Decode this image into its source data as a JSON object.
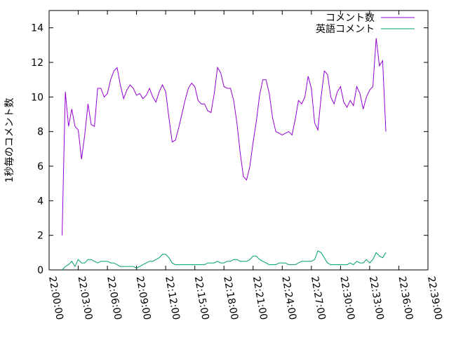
{
  "chart_data": {
    "type": "line",
    "title": "",
    "xlabel": "",
    "ylabel": "1秒毎のコメント数",
    "xlim": [
      "22:00:00",
      "22:39:00"
    ],
    "ylim": [
      0,
      15
    ],
    "x_ticks": [
      "22:00:00",
      "22:03:00",
      "22:06:00",
      "22:09:00",
      "22:12:00",
      "22:15:00",
      "22:18:00",
      "22:21:00",
      "22:24:00",
      "22:27:00",
      "22:30:00",
      "22:33:00",
      "22:36:00",
      "22:39:00"
    ],
    "y_ticks": [
      0,
      2,
      4,
      6,
      8,
      10,
      12,
      14
    ],
    "grid": false,
    "legend_position": "top-right",
    "series": [
      {
        "name": "コメント数",
        "color": "#9400d3",
        "points": [
          [
            "22:01:20",
            2.0
          ],
          [
            "22:01:40",
            10.3
          ],
          [
            "22:02:00",
            8.3
          ],
          [
            "22:02:20",
            9.3
          ],
          [
            "22:02:40",
            8.3
          ],
          [
            "22:03:00",
            8.1
          ],
          [
            "22:03:20",
            6.4
          ],
          [
            "22:03:40",
            7.8
          ],
          [
            "22:04:00",
            9.6
          ],
          [
            "22:04:20",
            8.4
          ],
          [
            "22:04:40",
            8.3
          ],
          [
            "22:05:00",
            10.5
          ],
          [
            "22:05:20",
            10.5
          ],
          [
            "22:05:40",
            10.0
          ],
          [
            "22:06:00",
            10.2
          ],
          [
            "22:06:20",
            11.0
          ],
          [
            "22:06:40",
            11.5
          ],
          [
            "22:07:00",
            11.7
          ],
          [
            "22:07:20",
            10.7
          ],
          [
            "22:07:40",
            9.9
          ],
          [
            "22:08:00",
            10.4
          ],
          [
            "22:08:20",
            10.7
          ],
          [
            "22:08:40",
            10.5
          ],
          [
            "22:09:00",
            10.1
          ],
          [
            "22:09:20",
            10.2
          ],
          [
            "22:09:40",
            9.9
          ],
          [
            "22:10:00",
            10.1
          ],
          [
            "22:10:20",
            10.5
          ],
          [
            "22:10:40",
            10.0
          ],
          [
            "22:11:00",
            9.7
          ],
          [
            "22:11:20",
            10.3
          ],
          [
            "22:11:40",
            10.7
          ],
          [
            "22:12:00",
            10.3
          ],
          [
            "22:12:20",
            8.8
          ],
          [
            "22:12:40",
            7.4
          ],
          [
            "22:13:00",
            7.5
          ],
          [
            "22:13:20",
            8.2
          ],
          [
            "22:13:40",
            9.0
          ],
          [
            "22:14:00",
            9.8
          ],
          [
            "22:14:20",
            10.5
          ],
          [
            "22:14:40",
            10.8
          ],
          [
            "22:15:00",
            10.6
          ],
          [
            "22:15:20",
            9.8
          ],
          [
            "22:15:40",
            9.6
          ],
          [
            "22:16:00",
            9.6
          ],
          [
            "22:16:20",
            9.2
          ],
          [
            "22:16:40",
            9.1
          ],
          [
            "22:17:00",
            10.2
          ],
          [
            "22:17:20",
            11.7
          ],
          [
            "22:17:40",
            11.4
          ],
          [
            "22:18:00",
            10.6
          ],
          [
            "22:18:20",
            10.5
          ],
          [
            "22:18:40",
            10.5
          ],
          [
            "22:19:00",
            9.8
          ],
          [
            "22:19:20",
            8.5
          ],
          [
            "22:19:40",
            6.8
          ],
          [
            "22:20:00",
            5.4
          ],
          [
            "22:20:20",
            5.2
          ],
          [
            "22:20:40",
            6.0
          ],
          [
            "22:21:00",
            7.4
          ],
          [
            "22:21:20",
            8.6
          ],
          [
            "22:21:40",
            10.1
          ],
          [
            "22:22:00",
            11.0
          ],
          [
            "22:22:20",
            11.0
          ],
          [
            "22:22:40",
            10.2
          ],
          [
            "22:23:00",
            8.8
          ],
          [
            "22:23:20",
            8.0
          ],
          [
            "22:23:40",
            7.9
          ],
          [
            "22:24:00",
            7.8
          ],
          [
            "22:24:20",
            7.9
          ],
          [
            "22:24:40",
            8.0
          ],
          [
            "22:25:00",
            7.8
          ],
          [
            "22:25:20",
            8.7
          ],
          [
            "22:25:40",
            9.8
          ],
          [
            "22:26:00",
            9.6
          ],
          [
            "22:26:20",
            10.0
          ],
          [
            "22:26:40",
            11.2
          ],
          [
            "22:27:00",
            10.5
          ],
          [
            "22:27:20",
            8.5
          ],
          [
            "22:27:40",
            8.1
          ],
          [
            "22:28:00",
            10.0
          ],
          [
            "22:28:20",
            11.5
          ],
          [
            "22:28:40",
            11.3
          ],
          [
            "22:29:00",
            10.0
          ],
          [
            "22:29:20",
            9.6
          ],
          [
            "22:29:40",
            10.3
          ],
          [
            "22:30:00",
            10.6
          ],
          [
            "22:30:20",
            9.7
          ],
          [
            "22:30:40",
            9.4
          ],
          [
            "22:31:00",
            9.8
          ],
          [
            "22:31:20",
            9.5
          ],
          [
            "22:31:40",
            10.6
          ],
          [
            "22:32:00",
            10.2
          ],
          [
            "22:32:20",
            9.3
          ],
          [
            "22:32:40",
            10.0
          ],
          [
            "22:33:00",
            10.4
          ],
          [
            "22:33:20",
            10.6
          ],
          [
            "22:33:40",
            13.4
          ],
          [
            "22:34:00",
            11.8
          ],
          [
            "22:34:20",
            12.1
          ],
          [
            "22:34:40",
            8.0
          ]
        ]
      },
      {
        "name": "英語コメント",
        "color": "#009e73",
        "points": [
          [
            "22:01:20",
            0.0
          ],
          [
            "22:01:40",
            0.2
          ],
          [
            "22:02:00",
            0.3
          ],
          [
            "22:02:20",
            0.5
          ],
          [
            "22:02:40",
            0.2
          ],
          [
            "22:03:00",
            0.6
          ],
          [
            "22:03:20",
            0.4
          ],
          [
            "22:03:40",
            0.4
          ],
          [
            "22:04:00",
            0.6
          ],
          [
            "22:04:20",
            0.6
          ],
          [
            "22:04:40",
            0.5
          ],
          [
            "22:05:00",
            0.4
          ],
          [
            "22:05:20",
            0.5
          ],
          [
            "22:05:40",
            0.5
          ],
          [
            "22:06:00",
            0.5
          ],
          [
            "22:06:20",
            0.4
          ],
          [
            "22:06:40",
            0.4
          ],
          [
            "22:07:00",
            0.3
          ],
          [
            "22:07:20",
            0.2
          ],
          [
            "22:07:40",
            0.2
          ],
          [
            "22:08:00",
            0.2
          ],
          [
            "22:08:20",
            0.2
          ],
          [
            "22:08:40",
            0.2
          ],
          [
            "22:09:00",
            0.1
          ],
          [
            "22:09:20",
            0.2
          ],
          [
            "22:09:40",
            0.3
          ],
          [
            "22:10:00",
            0.4
          ],
          [
            "22:10:20",
            0.5
          ],
          [
            "22:10:40",
            0.5
          ],
          [
            "22:11:00",
            0.6
          ],
          [
            "22:11:20",
            0.7
          ],
          [
            "22:11:40",
            0.9
          ],
          [
            "22:12:00",
            0.9
          ],
          [
            "22:12:20",
            0.7
          ],
          [
            "22:12:40",
            0.4
          ],
          [
            "22:13:00",
            0.3
          ],
          [
            "22:13:20",
            0.3
          ],
          [
            "22:13:40",
            0.3
          ],
          [
            "22:14:00",
            0.3
          ],
          [
            "22:14:20",
            0.3
          ],
          [
            "22:14:40",
            0.3
          ],
          [
            "22:15:00",
            0.3
          ],
          [
            "22:15:20",
            0.3
          ],
          [
            "22:15:40",
            0.3
          ],
          [
            "22:16:00",
            0.3
          ],
          [
            "22:16:20",
            0.4
          ],
          [
            "22:16:40",
            0.4
          ],
          [
            "22:17:00",
            0.4
          ],
          [
            "22:17:20",
            0.5
          ],
          [
            "22:17:40",
            0.4
          ],
          [
            "22:18:00",
            0.4
          ],
          [
            "22:18:20",
            0.5
          ],
          [
            "22:18:40",
            0.5
          ],
          [
            "22:19:00",
            0.6
          ],
          [
            "22:19:20",
            0.6
          ],
          [
            "22:19:40",
            0.5
          ],
          [
            "22:20:00",
            0.5
          ],
          [
            "22:20:20",
            0.5
          ],
          [
            "22:20:40",
            0.6
          ],
          [
            "22:21:00",
            0.8
          ],
          [
            "22:21:20",
            0.8
          ],
          [
            "22:21:40",
            0.6
          ],
          [
            "22:22:00",
            0.5
          ],
          [
            "22:22:20",
            0.4
          ],
          [
            "22:22:40",
            0.3
          ],
          [
            "22:23:00",
            0.3
          ],
          [
            "22:23:20",
            0.3
          ],
          [
            "22:23:40",
            0.4
          ],
          [
            "22:24:00",
            0.4
          ],
          [
            "22:24:20",
            0.4
          ],
          [
            "22:24:40",
            0.3
          ],
          [
            "22:25:00",
            0.3
          ],
          [
            "22:25:20",
            0.3
          ],
          [
            "22:25:40",
            0.4
          ],
          [
            "22:26:00",
            0.5
          ],
          [
            "22:26:20",
            0.5
          ],
          [
            "22:26:40",
            0.5
          ],
          [
            "22:27:00",
            0.5
          ],
          [
            "22:27:20",
            0.6
          ],
          [
            "22:27:40",
            1.1
          ],
          [
            "22:28:00",
            1.0
          ],
          [
            "22:28:20",
            0.7
          ],
          [
            "22:28:40",
            0.4
          ],
          [
            "22:29:00",
            0.3
          ],
          [
            "22:29:20",
            0.3
          ],
          [
            "22:29:40",
            0.3
          ],
          [
            "22:30:00",
            0.3
          ],
          [
            "22:30:20",
            0.3
          ],
          [
            "22:30:40",
            0.3
          ],
          [
            "22:31:00",
            0.4
          ],
          [
            "22:31:20",
            0.3
          ],
          [
            "22:31:40",
            0.5
          ],
          [
            "22:32:00",
            0.4
          ],
          [
            "22:32:20",
            0.4
          ],
          [
            "22:32:40",
            0.6
          ],
          [
            "22:33:00",
            0.4
          ],
          [
            "22:33:20",
            0.6
          ],
          [
            "22:33:40",
            1.0
          ],
          [
            "22:34:00",
            0.8
          ],
          [
            "22:34:20",
            0.7
          ],
          [
            "22:34:40",
            1.0
          ]
        ]
      }
    ]
  }
}
